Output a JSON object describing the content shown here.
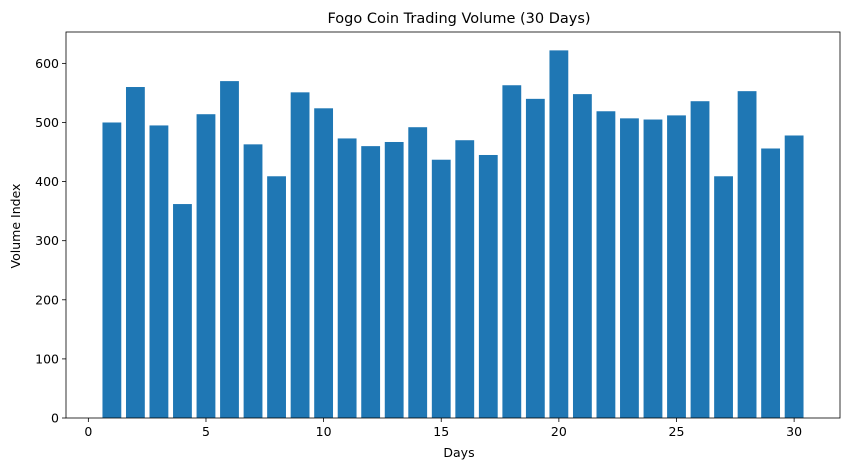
{
  "chart_data": {
    "type": "bar",
    "title": "Fogo Coin Trading Volume (30 Days)",
    "xlabel": "Days",
    "ylabel": "Volume Index",
    "x": [
      1,
      2,
      3,
      4,
      5,
      6,
      7,
      8,
      9,
      10,
      11,
      12,
      13,
      14,
      15,
      16,
      17,
      18,
      19,
      20,
      21,
      22,
      23,
      24,
      25,
      26,
      27,
      28,
      29,
      30
    ],
    "values": [
      500,
      560,
      495,
      362,
      514,
      570,
      463,
      409,
      551,
      524,
      473,
      460,
      467,
      492,
      437,
      470,
      445,
      563,
      540,
      622,
      548,
      519,
      507,
      505,
      512,
      536,
      409,
      553,
      456,
      478
    ],
    "xlim": [
      -0.95,
      31.95
    ],
    "ylim": [
      0,
      653.1
    ],
    "xticks": [
      0,
      5,
      10,
      15,
      20,
      25,
      30
    ],
    "yticks": [
      0,
      100,
      200,
      300,
      400,
      500,
      600
    ],
    "bar_width": 0.8,
    "bar_color": "#1f77b4",
    "grid": false,
    "legend": false
  }
}
